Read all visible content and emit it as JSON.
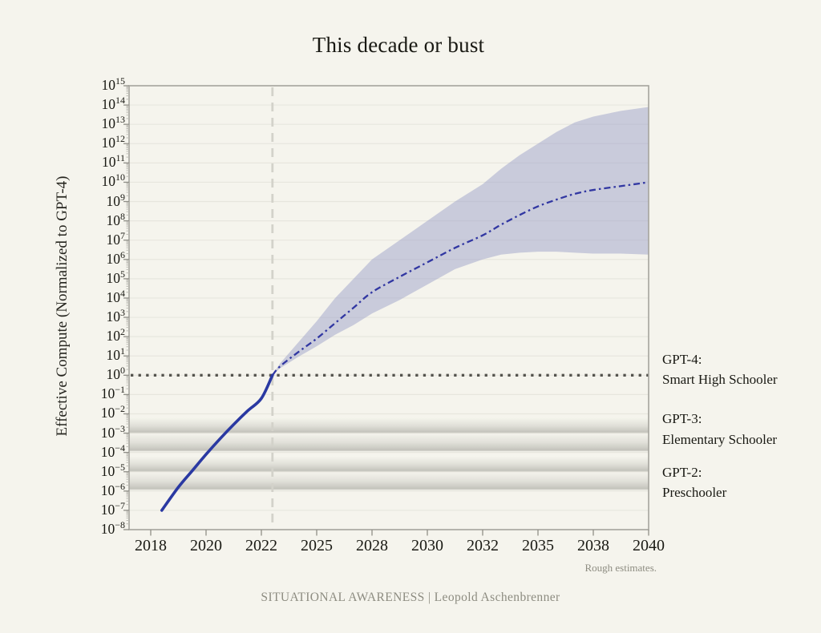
{
  "page": {
    "title": "This decade or bust",
    "note": "Rough estimates.",
    "footer": "SITUATIONAL AWARENESS | Leopold Aschenbrenner"
  },
  "chart_data": {
    "type": "line",
    "title": "This decade or bust",
    "ylabel": "Effective Compute (Normalized to GPT-4)",
    "xlabel": "",
    "x_ticks": [
      2018,
      2020,
      2022,
      2025,
      2028,
      2030,
      2032,
      2035,
      2038,
      2040
    ],
    "y_tick_exponents": [
      15,
      14,
      13,
      12,
      11,
      10,
      9,
      8,
      7,
      6,
      5,
      4,
      3,
      2,
      1,
      0,
      -1,
      -2,
      -3,
      -4,
      -5,
      -6,
      -7,
      -8
    ],
    "ylim_log10": [
      -8,
      15
    ],
    "y_scale": "log10",
    "grid": "horizontal-only",
    "series": [
      {
        "name": "historical-compute-to-gpt4",
        "style": "solid",
        "points": [
          [
            2018.4,
            -7.0
          ],
          [
            2019,
            -5.8
          ],
          [
            2019.5,
            -4.95
          ],
          [
            2020,
            -4.1
          ],
          [
            2020.5,
            -3.3
          ],
          [
            2021,
            -2.55
          ],
          [
            2021.5,
            -1.85
          ],
          [
            2022,
            -1.2
          ],
          [
            2022.6,
            0.0
          ]
        ]
      },
      {
        "name": "projection-median",
        "style": "dash-dot",
        "points": [
          [
            2022.6,
            0
          ],
          [
            2023,
            0.45
          ],
          [
            2024,
            1.2
          ],
          [
            2025,
            1.9
          ],
          [
            2026,
            2.7
          ],
          [
            2027,
            3.5
          ],
          [
            2028,
            4.3
          ],
          [
            2029,
            5.1
          ],
          [
            2030,
            5.85
          ],
          [
            2031,
            6.6
          ],
          [
            2032,
            7.25
          ],
          [
            2033,
            7.8
          ],
          [
            2034,
            8.3
          ],
          [
            2035,
            8.75
          ],
          [
            2036,
            9.1
          ],
          [
            2037,
            9.4
          ],
          [
            2038,
            9.6
          ],
          [
            2039,
            9.8
          ],
          [
            2040,
            10.0
          ]
        ]
      }
    ],
    "band": {
      "name": "projection-uncertainty-range",
      "upper": [
        [
          2022.6,
          0
        ],
        [
          2023,
          0.6
        ],
        [
          2024,
          1.7
        ],
        [
          2025,
          2.8
        ],
        [
          2026,
          4.0
        ],
        [
          2027,
          5.0
        ],
        [
          2028,
          6.0
        ],
        [
          2029,
          7.0
        ],
        [
          2030,
          8.0
        ],
        [
          2031,
          9.0
        ],
        [
          2032,
          9.9
        ],
        [
          2033,
          10.7
        ],
        [
          2034,
          11.4
        ],
        [
          2035,
          12.0
        ],
        [
          2036,
          12.6
        ],
        [
          2037,
          13.1
        ],
        [
          2038,
          13.4
        ],
        [
          2039,
          13.7
        ],
        [
          2040,
          13.9
        ]
      ],
      "lower": [
        [
          2022.6,
          0
        ],
        [
          2023,
          0.35
        ],
        [
          2024,
          0.95
        ],
        [
          2025,
          1.5
        ],
        [
          2026,
          2.1
        ],
        [
          2027,
          2.6
        ],
        [
          2028,
          3.2
        ],
        [
          2029,
          3.9
        ],
        [
          2030,
          4.7
        ],
        [
          2031,
          5.5
        ],
        [
          2032,
          6.0
        ],
        [
          2033,
          6.25
        ],
        [
          2034,
          6.35
        ],
        [
          2035,
          6.4
        ],
        [
          2036,
          6.4
        ],
        [
          2037,
          6.35
        ],
        [
          2038,
          6.3
        ],
        [
          2039,
          6.3
        ],
        [
          2040,
          6.25
        ]
      ]
    },
    "guides": [
      {
        "type": "horizontal-dotted",
        "log10": 0,
        "meaning": "GPT-4 level"
      },
      {
        "type": "vertical-dashed",
        "year": 2022.6,
        "meaning": "GPT-4 release"
      }
    ],
    "reference_bands": [
      {
        "label": "GPT-3",
        "from_log10": -2.2,
        "mid_log10": -3.0,
        "to_log10": -3.95
      },
      {
        "label": "GPT-2",
        "from_log10": -4.2,
        "mid_log10": -5.0,
        "to_log10": -5.95
      }
    ],
    "annotations": [
      {
        "title": "GPT-4:",
        "subtitle": "Smart High Schooler",
        "anchor_log10": 1.35
      },
      {
        "title": "GPT-3:",
        "subtitle": "Elementary Schooler",
        "anchor_log10": -1.75
      },
      {
        "title": "GPT-2:",
        "subtitle": "Preschooler",
        "anchor_log10": -4.5
      }
    ],
    "colors": {
      "background": "#f5f4ed",
      "grid": "#e7e6de",
      "spine": "#a5a49d",
      "tick_major": "#8f8e87",
      "tick_minor": "#bdbcb5",
      "dotted_guide": "#55544e",
      "dashed_guide": "#d3d2ca",
      "band_fill": "#9ea1ca",
      "median_line": "#3137a2",
      "solid_line": "#2a39a2",
      "reference_gray": "#87877f",
      "text": "#191913",
      "muted_text": "#8d8c81"
    }
  }
}
